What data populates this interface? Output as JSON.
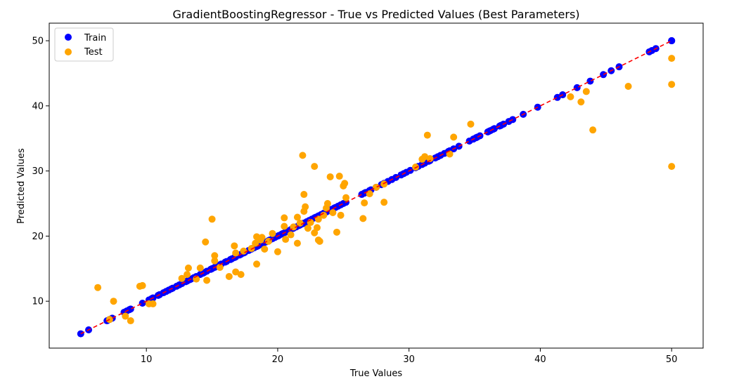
{
  "chart_data": {
    "type": "scatter",
    "title": "GradientBoostingRegressor - True vs Predicted Values (Best Parameters)",
    "xlabel": "True Values",
    "ylabel": "Predicted Values",
    "xlim": [
      2.6,
      52.4
    ],
    "ylim": [
      2.8,
      52.7
    ],
    "xticks": [
      10,
      20,
      30,
      40,
      50
    ],
    "yticks": [
      10,
      20,
      30,
      40,
      50
    ],
    "grid": false,
    "legend_position": "top-left",
    "series": [
      {
        "name": "Train",
        "color": "#0000ff",
        "points": [
          [
            5.0,
            5.0
          ],
          [
            5.6,
            5.6
          ],
          [
            7.0,
            7.0
          ],
          [
            7.2,
            7.2
          ],
          [
            7.4,
            7.4
          ],
          [
            8.3,
            8.3
          ],
          [
            8.5,
            8.5
          ],
          [
            8.7,
            8.7
          ],
          [
            8.8,
            8.8
          ],
          [
            9.7,
            9.7
          ],
          [
            10.2,
            10.2
          ],
          [
            10.4,
            10.4
          ],
          [
            10.5,
            10.5
          ],
          [
            10.9,
            10.9
          ],
          [
            11.0,
            11.0
          ],
          [
            11.3,
            11.3
          ],
          [
            11.5,
            11.5
          ],
          [
            11.7,
            11.7
          ],
          [
            11.9,
            11.9
          ],
          [
            12.0,
            12.0
          ],
          [
            12.3,
            12.3
          ],
          [
            12.5,
            12.5
          ],
          [
            12.7,
            12.7
          ],
          [
            13.0,
            13.0
          ],
          [
            13.1,
            13.1
          ],
          [
            13.3,
            13.3
          ],
          [
            13.4,
            13.4
          ],
          [
            13.6,
            13.6
          ],
          [
            13.8,
            13.8
          ],
          [
            14.1,
            14.1
          ],
          [
            14.3,
            14.3
          ],
          [
            14.4,
            14.4
          ],
          [
            14.6,
            14.6
          ],
          [
            14.9,
            14.9
          ],
          [
            15.0,
            15.0
          ],
          [
            15.2,
            15.2
          ],
          [
            15.4,
            15.4
          ],
          [
            15.6,
            15.6
          ],
          [
            15.7,
            15.7
          ],
          [
            16.0,
            16.0
          ],
          [
            16.1,
            16.1
          ],
          [
            16.4,
            16.4
          ],
          [
            16.5,
            16.5
          ],
          [
            16.7,
            16.7
          ],
          [
            16.8,
            16.8
          ],
          [
            17.1,
            17.1
          ],
          [
            17.2,
            17.2
          ],
          [
            17.4,
            17.4
          ],
          [
            17.5,
            17.5
          ],
          [
            17.8,
            17.8
          ],
          [
            18.0,
            18.0
          ],
          [
            18.2,
            18.2
          ],
          [
            18.4,
            18.4
          ],
          [
            18.5,
            18.5
          ],
          [
            18.7,
            18.7
          ],
          [
            18.8,
            18.8
          ],
          [
            18.9,
            18.9
          ],
          [
            19.1,
            19.1
          ],
          [
            19.3,
            19.3
          ],
          [
            19.4,
            19.4
          ],
          [
            19.6,
            19.6
          ],
          [
            19.8,
            19.8
          ],
          [
            20.0,
            20.0
          ],
          [
            20.1,
            20.1
          ],
          [
            20.3,
            20.3
          ],
          [
            20.4,
            20.4
          ],
          [
            20.6,
            20.6
          ],
          [
            20.8,
            20.8
          ],
          [
            21.0,
            21.0
          ],
          [
            21.2,
            21.2
          ],
          [
            21.4,
            21.4
          ],
          [
            21.6,
            21.6
          ],
          [
            21.7,
            21.7
          ],
          [
            21.9,
            21.9
          ],
          [
            22.0,
            22.0
          ],
          [
            22.2,
            22.2
          ],
          [
            22.4,
            22.4
          ],
          [
            22.6,
            22.6
          ],
          [
            22.8,
            22.8
          ],
          [
            22.9,
            22.9
          ],
          [
            23.1,
            23.1
          ],
          [
            23.3,
            23.3
          ],
          [
            23.5,
            23.5
          ],
          [
            23.7,
            23.7
          ],
          [
            23.9,
            23.9
          ],
          [
            24.1,
            24.1
          ],
          [
            24.3,
            24.3
          ],
          [
            24.4,
            24.4
          ],
          [
            24.6,
            24.6
          ],
          [
            24.8,
            24.8
          ],
          [
            25.0,
            25.0
          ],
          [
            25.2,
            25.2
          ],
          [
            26.4,
            26.4
          ],
          [
            26.6,
            26.6
          ],
          [
            26.7,
            26.7
          ],
          [
            27.0,
            27.0
          ],
          [
            27.1,
            27.1
          ],
          [
            27.5,
            27.5
          ],
          [
            27.9,
            27.9
          ],
          [
            28.1,
            28.1
          ],
          [
            28.4,
            28.4
          ],
          [
            28.7,
            28.7
          ],
          [
            29.0,
            29.0
          ],
          [
            29.4,
            29.4
          ],
          [
            29.6,
            29.6
          ],
          [
            29.8,
            29.8
          ],
          [
            30.1,
            30.1
          ],
          [
            30.5,
            30.5
          ],
          [
            30.7,
            30.7
          ],
          [
            31.0,
            31.0
          ],
          [
            31.2,
            31.2
          ],
          [
            31.5,
            31.5
          ],
          [
            31.6,
            31.6
          ],
          [
            32.0,
            32.0
          ],
          [
            32.2,
            32.2
          ],
          [
            32.4,
            32.4
          ],
          [
            32.7,
            32.7
          ],
          [
            33.0,
            33.0
          ],
          [
            33.1,
            33.1
          ],
          [
            33.4,
            33.4
          ],
          [
            33.8,
            33.8
          ],
          [
            34.6,
            34.6
          ],
          [
            34.9,
            34.9
          ],
          [
            35.1,
            35.1
          ],
          [
            35.2,
            35.2
          ],
          [
            35.4,
            35.4
          ],
          [
            36.0,
            36.0
          ],
          [
            36.1,
            36.1
          ],
          [
            36.2,
            36.2
          ],
          [
            36.4,
            36.4
          ],
          [
            36.5,
            36.5
          ],
          [
            36.9,
            36.9
          ],
          [
            37.0,
            37.0
          ],
          [
            37.2,
            37.2
          ],
          [
            37.6,
            37.6
          ],
          [
            37.9,
            37.9
          ],
          [
            38.7,
            38.7
          ],
          [
            39.8,
            39.8
          ],
          [
            41.3,
            41.3
          ],
          [
            41.7,
            41.7
          ],
          [
            42.8,
            42.8
          ],
          [
            43.8,
            43.8
          ],
          [
            44.8,
            44.8
          ],
          [
            45.4,
            45.4
          ],
          [
            46.0,
            46.0
          ],
          [
            48.3,
            48.3
          ],
          [
            48.5,
            48.5
          ],
          [
            48.8,
            48.8
          ],
          [
            50.0,
            50.0
          ],
          [
            50.0,
            50.0
          ],
          [
            50.0,
            50.0
          ]
        ]
      },
      {
        "name": "Test",
        "color": "#ffa500",
        "points": [
          [
            6.3,
            12.1
          ],
          [
            7.2,
            7.2
          ],
          [
            7.5,
            10.0
          ],
          [
            8.4,
            7.7
          ],
          [
            8.8,
            7.0
          ],
          [
            9.5,
            12.3
          ],
          [
            9.7,
            12.4
          ],
          [
            10.2,
            9.6
          ],
          [
            10.5,
            9.6
          ],
          [
            12.7,
            13.5
          ],
          [
            13.1,
            14.1
          ],
          [
            13.2,
            15.1
          ],
          [
            13.8,
            13.4
          ],
          [
            14.1,
            15.1
          ],
          [
            14.5,
            19.1
          ],
          [
            14.6,
            13.2
          ],
          [
            15.0,
            22.6
          ],
          [
            15.2,
            17.0
          ],
          [
            15.2,
            16.2
          ],
          [
            15.6,
            15.2
          ],
          [
            16.3,
            13.8
          ],
          [
            16.7,
            18.5
          ],
          [
            16.8,
            14.5
          ],
          [
            16.8,
            17.4
          ],
          [
            17.2,
            14.1
          ],
          [
            17.4,
            17.7
          ],
          [
            18.0,
            18.1
          ],
          [
            18.3,
            18.9
          ],
          [
            18.4,
            19.9
          ],
          [
            18.4,
            15.7
          ],
          [
            18.7,
            19.4
          ],
          [
            18.8,
            19.8
          ],
          [
            19.0,
            18.0
          ],
          [
            19.3,
            19.2
          ],
          [
            19.6,
            20.4
          ],
          [
            20.0,
            17.6
          ],
          [
            20.5,
            21.5
          ],
          [
            20.5,
            22.8
          ],
          [
            20.6,
            19.5
          ],
          [
            21.0,
            20.2
          ],
          [
            21.2,
            21.4
          ],
          [
            21.5,
            22.9
          ],
          [
            21.5,
            18.9
          ],
          [
            21.7,
            22.0
          ],
          [
            21.9,
            32.4
          ],
          [
            22.0,
            23.8
          ],
          [
            22.0,
            26.4
          ],
          [
            22.1,
            24.5
          ],
          [
            22.3,
            21.2
          ],
          [
            22.5,
            22.1
          ],
          [
            22.8,
            30.7
          ],
          [
            22.8,
            20.5
          ],
          [
            23.0,
            21.3
          ],
          [
            23.1,
            22.6
          ],
          [
            23.1,
            19.4
          ],
          [
            23.2,
            19.2
          ],
          [
            23.5,
            23.2
          ],
          [
            23.7,
            24.3
          ],
          [
            23.8,
            25.0
          ],
          [
            24.0,
            29.1
          ],
          [
            24.2,
            23.6
          ],
          [
            24.5,
            20.6
          ],
          [
            24.7,
            29.2
          ],
          [
            24.8,
            23.2
          ],
          [
            25.0,
            27.7
          ],
          [
            25.1,
            28.1
          ],
          [
            25.2,
            25.9
          ],
          [
            26.5,
            22.7
          ],
          [
            26.6,
            25.1
          ],
          [
            27.0,
            26.5
          ],
          [
            27.5,
            27.5
          ],
          [
            28.1,
            25.2
          ],
          [
            28.1,
            28.0
          ],
          [
            30.5,
            30.6
          ],
          [
            31.0,
            31.8
          ],
          [
            31.2,
            32.2
          ],
          [
            31.4,
            35.5
          ],
          [
            31.6,
            31.9
          ],
          [
            33.1,
            32.6
          ],
          [
            33.4,
            35.2
          ],
          [
            34.7,
            37.2
          ],
          [
            42.3,
            41.4
          ],
          [
            43.1,
            40.6
          ],
          [
            43.5,
            42.2
          ],
          [
            44.0,
            36.3
          ],
          [
            46.7,
            43.0
          ],
          [
            50.0,
            47.3
          ],
          [
            50.0,
            43.3
          ],
          [
            50.0,
            30.7
          ]
        ]
      }
    ],
    "reference_line": {
      "from": [
        5.0,
        5.0
      ],
      "to": [
        50.0,
        50.0
      ],
      "color": "#ff0000",
      "style": "dashed"
    }
  }
}
